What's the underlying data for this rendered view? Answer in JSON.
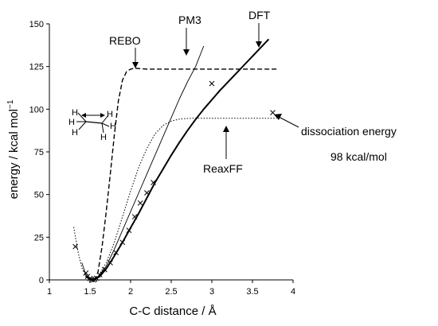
{
  "chart_data": {
    "type": "line",
    "title": "",
    "xlabel": "C-C distance / Å",
    "ylabel": "energy / kcal mol",
    "ylabel_superscript": "−1",
    "xlim": [
      1,
      4
    ],
    "ylim": [
      0,
      150
    ],
    "xticks": [
      "1",
      "1.5",
      "2",
      "2.5",
      "3",
      "3.5",
      "4"
    ],
    "yticks": [
      "0",
      "25",
      "50",
      "75",
      "100",
      "125",
      "150"
    ],
    "series": [
      {
        "name": "DFT",
        "style": "solid-thick",
        "x": [
          1.45,
          1.5,
          1.53,
          1.56,
          1.62,
          1.7,
          1.8,
          1.9,
          2.0,
          2.1,
          2.2,
          2.3,
          2.4,
          2.5,
          2.6,
          2.7,
          2.8,
          2.9,
          3.0,
          3.1,
          3.2,
          3.3,
          3.4,
          3.5,
          3.6,
          3.7
        ],
        "y": [
          2,
          0.3,
          0,
          0.4,
          2,
          6.5,
          14,
          22,
          30.5,
          39,
          48,
          57,
          65,
          73,
          80.5,
          87.5,
          94,
          100,
          105.5,
          111,
          116,
          121,
          126,
          131,
          136,
          141
        ]
      },
      {
        "name": "PM3",
        "style": "solid-thin",
        "x": [
          1.4,
          1.45,
          1.5,
          1.55,
          1.6,
          1.7,
          1.8,
          1.9,
          2.0,
          2.1,
          2.2,
          2.3,
          2.4,
          2.5,
          2.6,
          2.7,
          2.8,
          2.9
        ],
        "y": [
          10,
          3,
          0.5,
          0.3,
          2,
          8,
          18,
          29,
          40,
          51,
          62,
          73,
          84,
          95,
          106,
          116,
          125,
          137
        ]
      },
      {
        "name": "REBO",
        "style": "dashed",
        "x": [
          1.48,
          1.5,
          1.53,
          1.57,
          1.6,
          1.65,
          1.7,
          1.75,
          1.8,
          1.85,
          1.9,
          1.95,
          2.0,
          2.05,
          2.1,
          2.2,
          2.5,
          3.0,
          3.5,
          3.8
        ],
        "y": [
          2,
          0.5,
          0,
          0.5,
          5,
          20,
          40,
          62,
          85,
          105,
          117,
          122,
          123.5,
          124,
          123.8,
          123.5,
          123.5,
          123.5,
          123.5,
          123.5
        ]
      },
      {
        "name": "ReaxFF",
        "style": "dotted",
        "x": [
          1.3,
          1.35,
          1.4,
          1.45,
          1.5,
          1.55,
          1.6,
          1.7,
          1.8,
          1.9,
          2.0,
          2.1,
          2.2,
          2.3,
          2.4,
          2.5,
          2.6,
          2.7,
          2.8,
          3.0,
          3.5,
          3.8
        ],
        "y": [
          31,
          17,
          7,
          2,
          0.3,
          0.3,
          2,
          10,
          22,
          37,
          52,
          66,
          77,
          85.5,
          90.5,
          93,
          94.2,
          94.6,
          94.7,
          94.7,
          94.7,
          94.7
        ]
      },
      {
        "name": "DFT points",
        "style": "markers",
        "x": [
          1.32,
          1.45,
          1.47,
          1.5,
          1.52,
          1.54,
          1.56,
          1.58,
          1.62,
          1.68,
          1.75,
          1.82,
          1.9,
          1.98,
          2.05,
          2.12,
          2.2,
          2.28,
          3.0,
          3.75
        ],
        "y": [
          19.5,
          4,
          2,
          0.8,
          0.2,
          0,
          0.3,
          1,
          3,
          6,
          10,
          16,
          22,
          29,
          37,
          45,
          51,
          57,
          115,
          98
        ]
      }
    ],
    "annotations": {
      "dft": "DFT",
      "pm3": "PM3",
      "rebo": "REBO",
      "reaxff": "ReaxFF",
      "dissociation_label": "dissociation energy",
      "dissociation_value": "98 kcal/mol"
    },
    "molecule_atoms": [
      "H",
      "H",
      "H",
      "H",
      "H",
      "H"
    ],
    "grid": false,
    "legend": "none"
  }
}
